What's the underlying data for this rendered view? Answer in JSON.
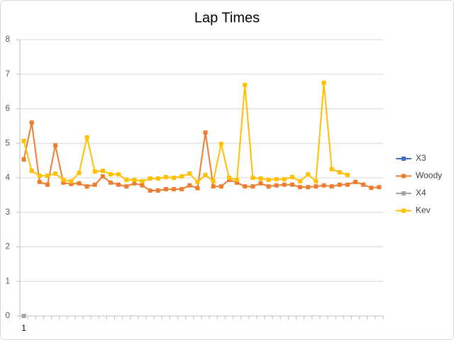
{
  "chart_data": {
    "type": "line",
    "title": "Lap Times",
    "categories": [
      "1",
      null,
      null,
      null,
      null,
      null,
      null,
      null,
      null,
      null,
      null,
      null,
      null,
      null,
      null,
      null,
      null,
      null,
      null,
      null,
      null,
      null,
      null,
      null,
      null,
      null,
      null,
      null,
      null,
      null,
      null,
      null,
      null,
      null,
      null,
      null,
      null,
      null,
      null,
      null,
      null,
      null,
      null,
      null,
      null,
      null
    ],
    "series": [
      {
        "name": "X3",
        "color": "#4472c4",
        "values": [
          0,
          null,
          null,
          null,
          null,
          null,
          null,
          null,
          null,
          null,
          null,
          null,
          null,
          null,
          null,
          null,
          null,
          null,
          null,
          null,
          null,
          null,
          null,
          null,
          null,
          null,
          null,
          null,
          null,
          null,
          null,
          null,
          null,
          null,
          null,
          null,
          null,
          null,
          null,
          null,
          null,
          null,
          null,
          null,
          null,
          null
        ]
      },
      {
        "name": "Woody",
        "color": "#ed7d31",
        "values": [
          4.53,
          5.6,
          3.88,
          3.8,
          4.94,
          3.86,
          3.82,
          3.84,
          3.75,
          3.8,
          4.04,
          3.86,
          3.8,
          3.75,
          3.84,
          3.78,
          3.63,
          3.63,
          3.67,
          3.67,
          3.67,
          3.78,
          3.7,
          5.31,
          3.75,
          3.75,
          3.94,
          3.86,
          3.75,
          3.75,
          3.84,
          3.75,
          3.78,
          3.8,
          3.8,
          3.73,
          3.73,
          3.75,
          3.78,
          3.75,
          3.8,
          3.8,
          3.88,
          3.8,
          3.71,
          3.73
        ]
      },
      {
        "name": "X4",
        "color": "#a5a5a5",
        "values": [
          0,
          null,
          null,
          null,
          null,
          null,
          null,
          null,
          null,
          null,
          null,
          null,
          null,
          null,
          null,
          null,
          null,
          null,
          null,
          null,
          null,
          null,
          null,
          null,
          null,
          null,
          null,
          null,
          null,
          null,
          null,
          null,
          null,
          null,
          null,
          null,
          null,
          null,
          null,
          null,
          null,
          null,
          null,
          null,
          null,
          null
        ]
      },
      {
        "name": "Kev",
        "color": "#ffc000",
        "values": [
          5.07,
          4.2,
          4.06,
          4.06,
          4.12,
          3.94,
          3.9,
          4.14,
          5.17,
          4.18,
          4.2,
          4.1,
          4.1,
          3.94,
          3.94,
          3.9,
          3.98,
          3.98,
          4.02,
          4.0,
          4.04,
          4.12,
          3.88,
          4.08,
          3.9,
          4.98,
          4.0,
          3.94,
          6.69,
          4.0,
          3.98,
          3.94,
          3.96,
          3.96,
          4.02,
          3.9,
          4.1,
          3.9,
          6.75,
          4.25,
          4.16,
          4.08,
          null,
          null,
          null,
          null
        ]
      }
    ],
    "ylim": [
      0,
      8
    ],
    "yticks": [
      0,
      1,
      2,
      3,
      4,
      5,
      6,
      7,
      8
    ],
    "grid": true,
    "legend": "right"
  }
}
